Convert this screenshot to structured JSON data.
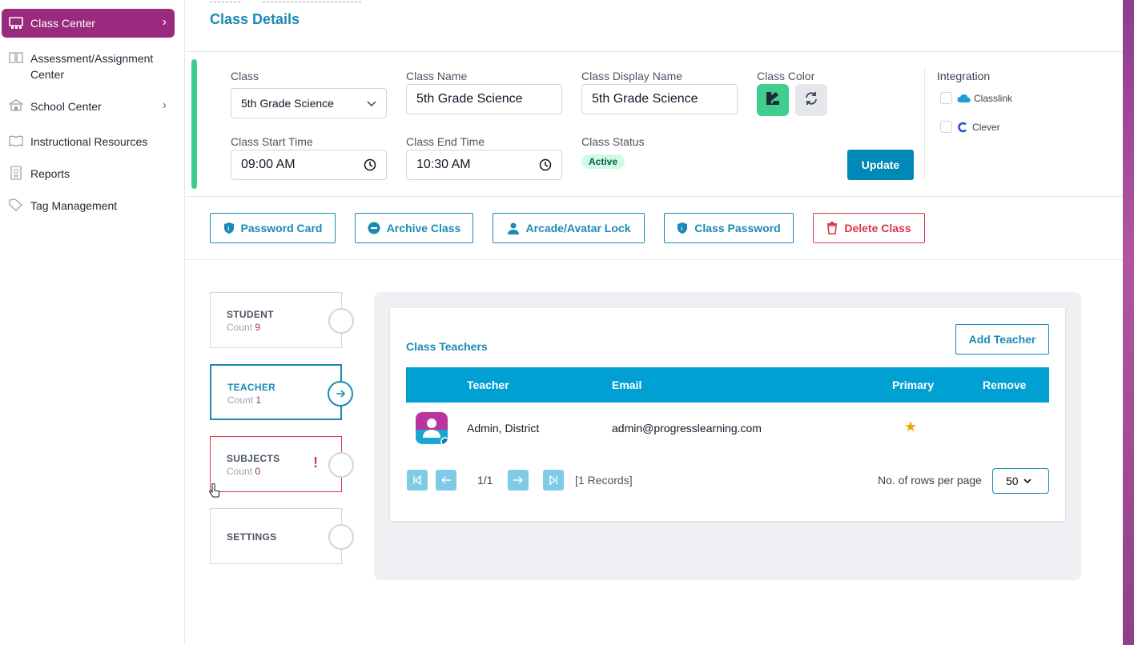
{
  "sidebar": {
    "items": [
      {
        "label": "Class Center",
        "icon": "classroom-icon",
        "active": true,
        "chevron": "›"
      },
      {
        "label": "Assessment/Assignment Center",
        "icon": "book-icon"
      },
      {
        "label": "School Center",
        "icon": "school-icon",
        "chevron": "›"
      },
      {
        "label": "Instructional Resources",
        "icon": "open-book-icon"
      },
      {
        "label": "Reports",
        "icon": "report-icon"
      },
      {
        "label": "Tag Management",
        "icon": "tag-icon"
      }
    ]
  },
  "page": {
    "title": "Class Details"
  },
  "form": {
    "class_label": "Class",
    "class_value": "5th Grade Science",
    "class_name_label": "Class Name",
    "class_name_value": "5th Grade Science",
    "display_name_label": "Class Display Name",
    "display_name_value": "5th Grade Science",
    "color_label": "Class Color",
    "start_label": "Class Start Time",
    "start_value": "09:00 AM",
    "end_label": "Class End Time",
    "end_value": "10:30 AM",
    "status_label": "Class Status",
    "status_value": "Active",
    "update_label": "Update",
    "accent_color": "#3ecf8e"
  },
  "integration": {
    "title": "Integration",
    "items": [
      {
        "label": "Classlink",
        "icon": "classlink-icon"
      },
      {
        "label": "Clever",
        "icon": "clever-icon"
      }
    ]
  },
  "actions": [
    {
      "label": "Password Card",
      "icon": "shield-icon"
    },
    {
      "label": "Archive Class",
      "icon": "minus-circle-icon"
    },
    {
      "label": "Arcade/Avatar Lock",
      "icon": "user-icon"
    },
    {
      "label": "Class Password",
      "icon": "shield-icon"
    },
    {
      "label": "Delete Class",
      "icon": "trash-icon"
    }
  ],
  "steps": [
    {
      "title": "STUDENT",
      "count_label": "Count",
      "count": "9"
    },
    {
      "title": "TEACHER",
      "count_label": "Count",
      "count": "1"
    },
    {
      "title": "SUBJECTS",
      "count_label": "Count",
      "count": "0",
      "error_mark": "!"
    },
    {
      "title": "SETTINGS"
    }
  ],
  "teachers": {
    "title": "Class Teachers",
    "add_label": "Add Teacher",
    "columns": [
      "Teacher",
      "Email",
      "Primary",
      "Remove"
    ],
    "rows": [
      {
        "name": "Admin, District",
        "email": "admin@progresslearning.com",
        "primary": "★"
      }
    ],
    "pager": {
      "page": "1/1",
      "records": "[1 Records]",
      "rows_label": "No. of rows per page",
      "rows_value": "50"
    }
  },
  "colors": {
    "brand_purple": "#9a2a7d",
    "primary_blue": "#1a8ab5",
    "table_header": "#00a0d2",
    "danger": "#dc3545"
  }
}
